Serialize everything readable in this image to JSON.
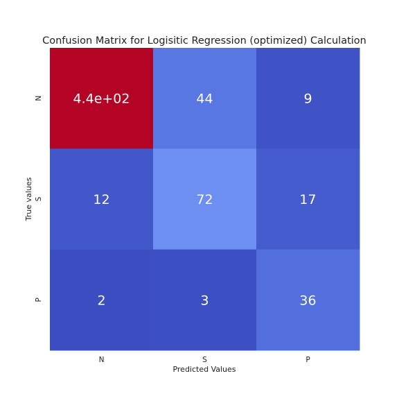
{
  "chart_data": {
    "type": "heatmap",
    "title": "Confusion Matrix for Logisitic Regression (optimized) Calculation",
    "xlabel": "Predicted Values",
    "ylabel": "True values",
    "x_categories": [
      "N",
      "S",
      "P"
    ],
    "y_categories": [
      "N",
      "S",
      "P"
    ],
    "values": [
      [
        440,
        44,
        9
      ],
      [
        12,
        72,
        17
      ],
      [
        2,
        3,
        36
      ]
    ],
    "cell_labels": [
      [
        "4.4e+02",
        "44",
        "9"
      ],
      [
        "12",
        "72",
        "17"
      ],
      [
        "2",
        "3",
        "36"
      ]
    ],
    "colormap": "coolwarm",
    "colorbar": false,
    "colors": {
      "cells": [
        [
          "#b40426",
          "#5977e3",
          "#3f53c6"
        ],
        [
          "#4257c9",
          "#6c8ff1",
          "#455cce"
        ],
        [
          "#3c4ec2",
          "#3d50c3",
          "#536edd"
        ]
      ],
      "annotation_text": "#ffffff",
      "title_text": "#222222",
      "axis_text": "#222222"
    }
  }
}
